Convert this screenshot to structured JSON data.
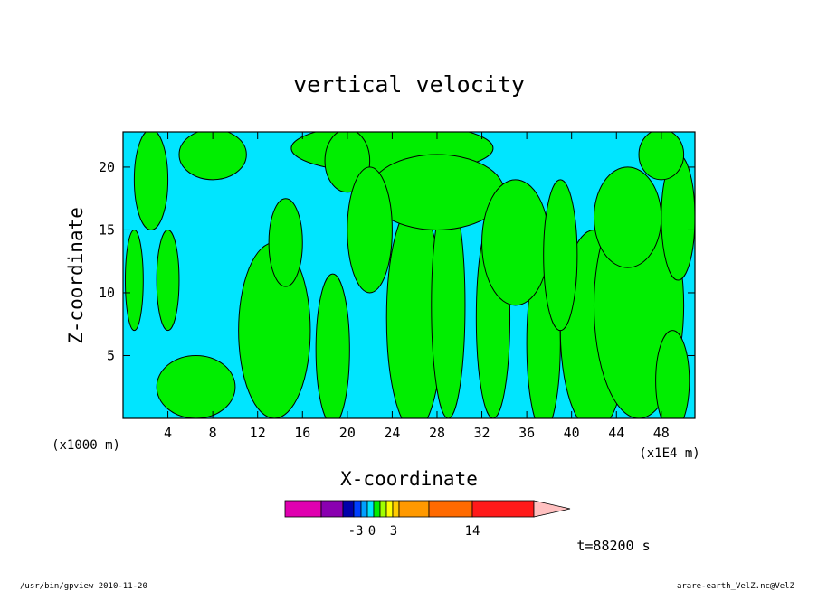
{
  "chart_data": {
    "type": "heatmap",
    "title": "vertical velocity",
    "xlabel": "X-coordinate",
    "ylabel": "Z-coordinate",
    "x_unit_left": "(x1000 m)",
    "x_unit_right": "(x1E4 m)",
    "xlim": [
      0,
      51
    ],
    "ylim": [
      0,
      22.8
    ],
    "x_ticks": [
      "4",
      "8",
      "12",
      "16",
      "20",
      "24",
      "28",
      "32",
      "36",
      "40",
      "44",
      "48"
    ],
    "x_tick_values": [
      4,
      8,
      12,
      16,
      20,
      24,
      28,
      32,
      36,
      40,
      44,
      48
    ],
    "y_ticks": [
      "5",
      "10",
      "15",
      "20"
    ],
    "y_tick_values": [
      5,
      10,
      15,
      20
    ],
    "colors": {
      "negative": "#00e5ff",
      "positive": "#00ee00",
      "contour": "#000000"
    },
    "green_regions": [
      {
        "cx": 6.5,
        "cy": 2.5,
        "rx": 3.5,
        "ry": 2.5
      },
      {
        "cx": 13.5,
        "cy": 7,
        "rx": 3.2,
        "ry": 7
      },
      {
        "cx": 18.7,
        "cy": 5.5,
        "rx": 1.5,
        "ry": 6
      },
      {
        "cx": 14.5,
        "cy": 14,
        "rx": 1.5,
        "ry": 3.5
      },
      {
        "cx": 26,
        "cy": 8,
        "rx": 2.5,
        "ry": 9
      },
      {
        "cx": 29,
        "cy": 9,
        "rx": 1.5,
        "ry": 9
      },
      {
        "cx": 33,
        "cy": 8,
        "rx": 1.5,
        "ry": 8
      },
      {
        "cx": 37.5,
        "cy": 6,
        "rx": 1.5,
        "ry": 7
      },
      {
        "cx": 42,
        "cy": 7,
        "rx": 3,
        "ry": 8
      },
      {
        "cx": 46,
        "cy": 9,
        "rx": 4,
        "ry": 9
      },
      {
        "cx": 49,
        "cy": 3,
        "rx": 1.5,
        "ry": 4
      },
      {
        "cx": 24,
        "cy": 21.5,
        "rx": 9,
        "ry": 2
      },
      {
        "cx": 28,
        "cy": 18,
        "rx": 6,
        "ry": 3
      },
      {
        "cx": 20,
        "cy": 20.5,
        "rx": 2,
        "ry": 2.5
      },
      {
        "cx": 8,
        "cy": 21,
        "rx": 3,
        "ry": 2
      },
      {
        "cx": 2.5,
        "cy": 19,
        "rx": 1.5,
        "ry": 4
      },
      {
        "cx": 1,
        "cy": 11,
        "rx": 0.8,
        "ry": 4
      },
      {
        "cx": 4,
        "cy": 11,
        "rx": 1,
        "ry": 4
      },
      {
        "cx": 22,
        "cy": 15,
        "rx": 2,
        "ry": 5
      },
      {
        "cx": 35,
        "cy": 14,
        "rx": 3,
        "ry": 5
      },
      {
        "cx": 39,
        "cy": 13,
        "rx": 1.5,
        "ry": 6
      },
      {
        "cx": 45,
        "cy": 16,
        "rx": 3,
        "ry": 4
      },
      {
        "cx": 49.5,
        "cy": 16,
        "rx": 1.5,
        "ry": 5
      },
      {
        "cx": 48,
        "cy": 21,
        "rx": 2,
        "ry": 2
      }
    ],
    "colorbar": {
      "labels": [
        "-3",
        "0",
        "3",
        "14"
      ],
      "label_values": [
        -3,
        0,
        3,
        14
      ],
      "colors": [
        "#e000b0",
        "#8a00b0",
        "#0000aa",
        "#0040ff",
        "#00a0ff",
        "#00e5ff",
        "#00ee00",
        "#a0ff00",
        "#ffff00",
        "#ffcc00",
        "#ff9900",
        "#ff6a00",
        "#ff1a1a",
        "#ff8080",
        "#ffc0c0"
      ]
    }
  },
  "time_label": "t=88200 s",
  "footer": {
    "left": "/usr/bin/gpview  2010-11-20",
    "right": "arare-earth_VelZ.nc@VelZ"
  }
}
